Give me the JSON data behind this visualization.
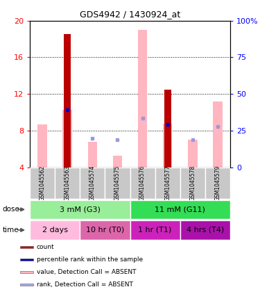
{
  "title": "GDS4942 / 1430924_at",
  "samples": [
    "GSM1045562",
    "GSM1045563",
    "GSM1045574",
    "GSM1045575",
    "GSM1045576",
    "GSM1045577",
    "GSM1045578",
    "GSM1045579"
  ],
  "red_bars": [
    0,
    18.5,
    0,
    0,
    0,
    12.5,
    0,
    0
  ],
  "pink_bars": [
    8.7,
    10.3,
    6.8,
    5.3,
    19.0,
    8.8,
    7.0,
    11.2
  ],
  "blue_dots": [
    0,
    10.3,
    0,
    0,
    0,
    8.7,
    0,
    0
  ],
  "light_blue_dots": [
    0,
    0,
    7.2,
    7.0,
    9.4,
    0,
    7.0,
    8.5
  ],
  "ylim_left": [
    4,
    20
  ],
  "ylim_right": [
    0,
    100
  ],
  "yticks_left": [
    4,
    8,
    12,
    16,
    20
  ],
  "yticks_right": [
    0,
    25,
    50,
    75,
    100
  ],
  "ytick_labels_right": [
    "0",
    "25",
    "50",
    "75",
    "100%"
  ],
  "red_bar_width": 0.28,
  "pink_bar_width": 0.38,
  "dose_groups": [
    {
      "label": "3 mM (G3)",
      "start": 0,
      "end": 4,
      "color": "#99EE99"
    },
    {
      "label": "11 mM (G11)",
      "start": 4,
      "end": 8,
      "color": "#33DD55"
    }
  ],
  "time_colors": [
    "#FFBBDD",
    "#DD66AA",
    "#CC22BB",
    "#AA11AA"
  ],
  "time_groups": [
    {
      "label": "2 days",
      "start": 0,
      "end": 2
    },
    {
      "label": "10 hr (T0)",
      "start": 2,
      "end": 4
    },
    {
      "label": "1 hr (T1)",
      "start": 4,
      "end": 6
    },
    {
      "label": "4 hrs (T4)",
      "start": 6,
      "end": 8
    }
  ],
  "legend_colors": [
    "#CC0000",
    "#0000BB",
    "#FFB6C1",
    "#AAAAEE"
  ],
  "legend_labels": [
    "count",
    "percentile rank within the sample",
    "value, Detection Call = ABSENT",
    "rank, Detection Call = ABSENT"
  ],
  "sample_box_color": "#C8C8C8",
  "grid_linestyle": "dotted",
  "left_tick_color": "red",
  "right_tick_color": "blue"
}
